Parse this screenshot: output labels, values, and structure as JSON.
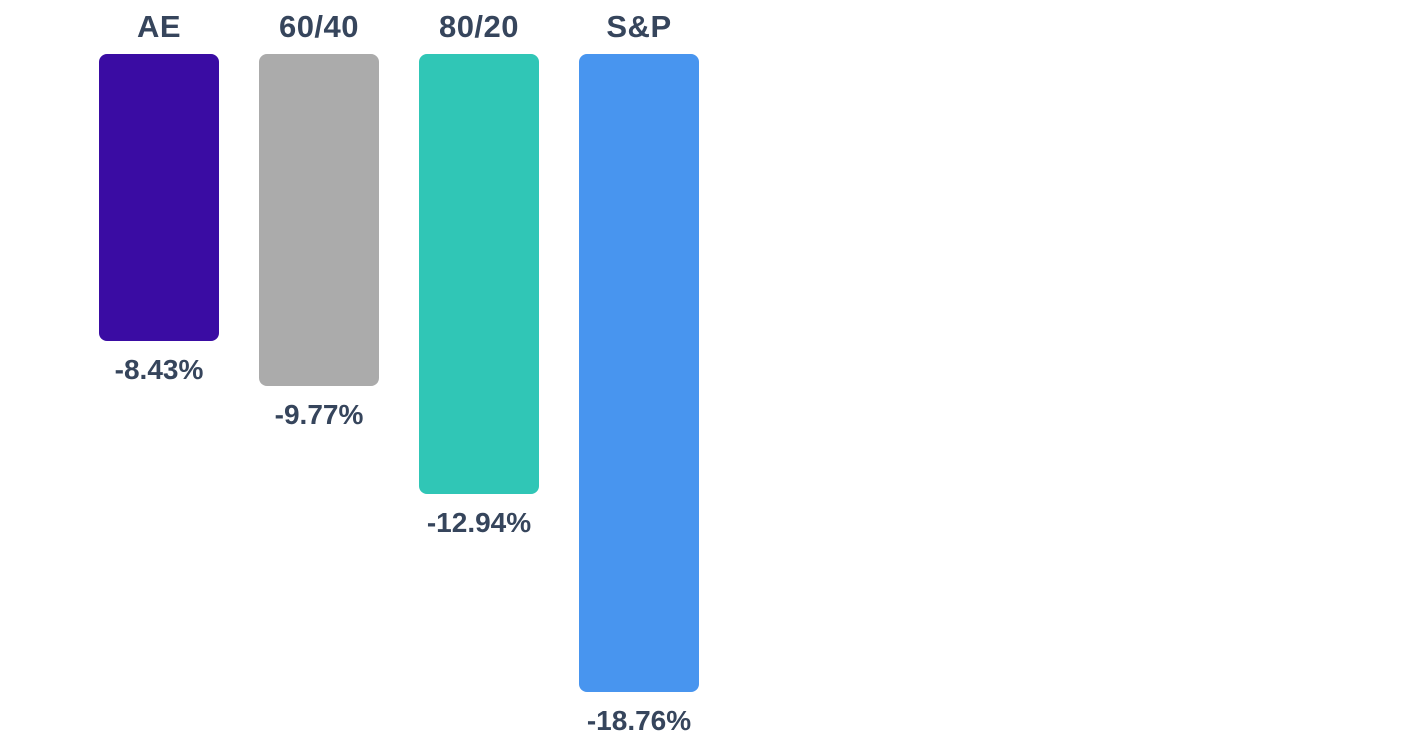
{
  "chart_data": {
    "type": "bar",
    "orientation": "vertical",
    "direction": "downward-from-top-baseline",
    "title": "",
    "xlabel": "",
    "ylabel": "",
    "grid": false,
    "legend": "none",
    "baseline": 0,
    "ylim": [
      -20,
      0
    ],
    "categories": [
      "AE",
      "60/40",
      "80/20",
      "S&P"
    ],
    "values": [
      -8.43,
      -9.77,
      -12.94,
      -18.76
    ],
    "value_labels": [
      "-8.43%",
      "-9.77%",
      "-12.94%",
      "-18.76%"
    ],
    "bar_colors": [
      "#3a0ca3",
      "#ababab",
      "#30c6b6",
      "#4895ef"
    ],
    "text_color": "#36455c",
    "background_color": "#ffffff"
  }
}
